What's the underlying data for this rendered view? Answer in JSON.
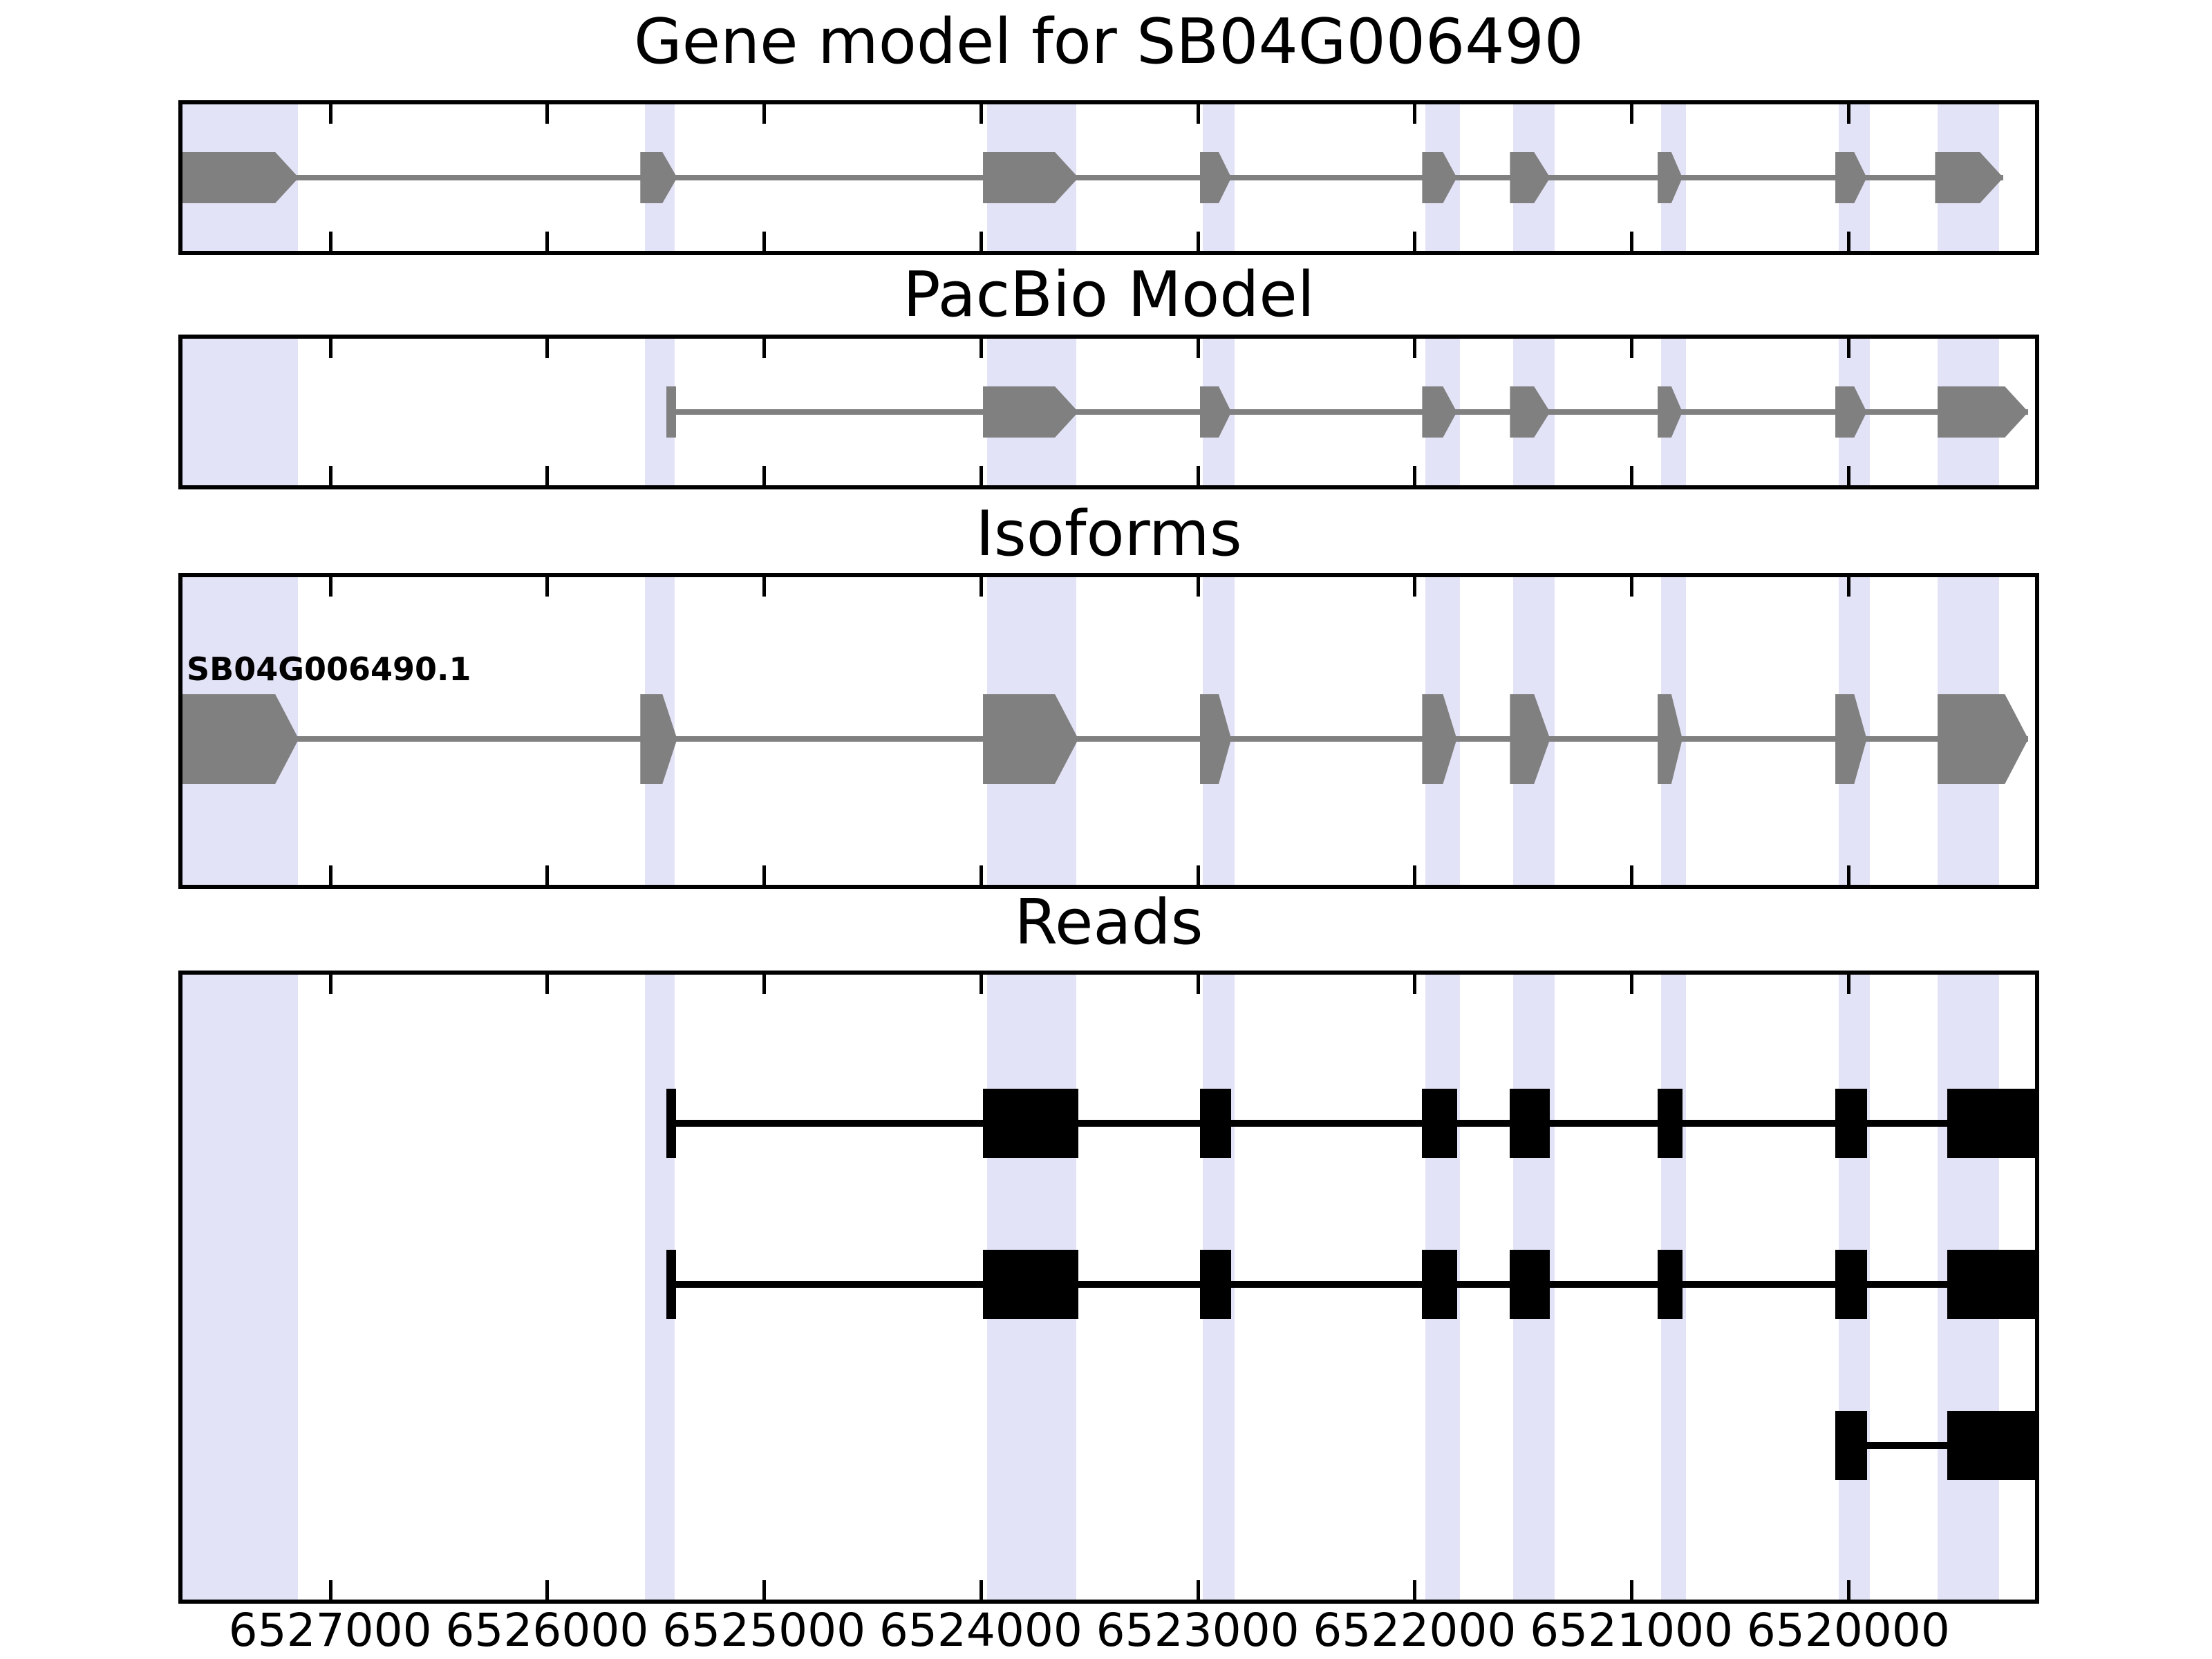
{
  "figure": {
    "background": "#ffffff",
    "panels": [
      {
        "id": "gene_model",
        "title": "Gene model for SB04G006490"
      },
      {
        "id": "pacbio",
        "title": "PacBio Model"
      },
      {
        "id": "isoforms",
        "title": "Isoforms"
      },
      {
        "id": "reads",
        "title": "Reads"
      }
    ]
  },
  "colors": {
    "exon_gray": "#808080",
    "intron_gray": "#808080",
    "read_black": "#000000",
    "highlight_band": "#e3e3f7",
    "panel_border": "#000000",
    "text": "#000000"
  },
  "chart_data": {
    "type": "genomic-feature-tracks",
    "title": "Gene model for SB04G006490",
    "orientation": "genomic coordinates decrease left-to-right (minus-strand view, arrows point right)",
    "grid": false,
    "axis": {
      "left_bp": 6527700,
      "right_bp": 6519120,
      "tick_values": [
        6527000,
        6526000,
        6525000,
        6524000,
        6523000,
        6522000,
        6521000,
        6520000
      ],
      "tick_labels": [
        "6527000",
        "6526000",
        "6525000",
        "6524000",
        "6523000",
        "6522000",
        "6521000",
        "6520000"
      ]
    },
    "highlight_bands_bp": [
      [
        6527680,
        6527150
      ],
      [
        6525550,
        6525410
      ],
      [
        6523970,
        6523560
      ],
      [
        6522975,
        6522830
      ],
      [
        6521950,
        6521790
      ],
      [
        6521545,
        6521355
      ],
      [
        6520865,
        6520750
      ],
      [
        6520045,
        6519900
      ],
      [
        6519590,
        6519305
      ]
    ],
    "tracks": [
      {
        "name": "Gene model for SB04G006490",
        "style": "gene-arrow-gray",
        "features": [
          {
            "start": 6527685,
            "end": 6527145,
            "shape": "arrow"
          },
          {
            "start": 6525570,
            "end": 6525400,
            "shape": "arrow"
          },
          {
            "start": 6523990,
            "end": 6523550,
            "shape": "arrow"
          },
          {
            "start": 6522990,
            "end": 6522845,
            "shape": "arrow"
          },
          {
            "start": 6521965,
            "end": 6521805,
            "shape": "arrow"
          },
          {
            "start": 6521560,
            "end": 6521375,
            "shape": "arrow"
          },
          {
            "start": 6520880,
            "end": 6520765,
            "shape": "arrow"
          },
          {
            "start": 6520060,
            "end": 6519915,
            "shape": "arrow"
          },
          {
            "start": 6519600,
            "end": 6519285,
            "shape": "arrow"
          }
        ]
      },
      {
        "name": "PacBio Model",
        "style": "gene-arrow-gray",
        "features": [
          {
            "start": 6525450,
            "end": 6525405,
            "shape": "bar"
          },
          {
            "start": 6523990,
            "end": 6523550,
            "shape": "arrow"
          },
          {
            "start": 6522990,
            "end": 6522845,
            "shape": "arrow"
          },
          {
            "start": 6521965,
            "end": 6521805,
            "shape": "arrow"
          },
          {
            "start": 6521560,
            "end": 6521375,
            "shape": "arrow"
          },
          {
            "start": 6520880,
            "end": 6520765,
            "shape": "arrow"
          },
          {
            "start": 6520060,
            "end": 6519915,
            "shape": "arrow"
          },
          {
            "start": 6519590,
            "end": 6519170,
            "shape": "arrow"
          }
        ]
      },
      {
        "name": "Isoforms",
        "isoform_label": "SB04G006490.1",
        "style": "gene-arrow-gray",
        "features": [
          {
            "start": 6527685,
            "end": 6527145,
            "shape": "arrow"
          },
          {
            "start": 6525570,
            "end": 6525400,
            "shape": "arrow"
          },
          {
            "start": 6523990,
            "end": 6523550,
            "shape": "arrow"
          },
          {
            "start": 6522990,
            "end": 6522845,
            "shape": "arrow"
          },
          {
            "start": 6521965,
            "end": 6521805,
            "shape": "arrow"
          },
          {
            "start": 6521560,
            "end": 6521375,
            "shape": "arrow"
          },
          {
            "start": 6520880,
            "end": 6520765,
            "shape": "arrow"
          },
          {
            "start": 6520060,
            "end": 6519915,
            "shape": "arrow"
          },
          {
            "start": 6519590,
            "end": 6519170,
            "shape": "arrow"
          }
        ]
      },
      {
        "name": "Reads",
        "style": "read-black",
        "reads": [
          {
            "features": [
              {
                "start": 6525450,
                "end": 6525405,
                "shape": "bar"
              },
              {
                "start": 6523990,
                "end": 6523550,
                "shape": "rect"
              },
              {
                "start": 6522990,
                "end": 6522845,
                "shape": "rect"
              },
              {
                "start": 6521965,
                "end": 6521805,
                "shape": "rect"
              },
              {
                "start": 6521560,
                "end": 6521375,
                "shape": "rect"
              },
              {
                "start": 6520880,
                "end": 6520765,
                "shape": "rect"
              },
              {
                "start": 6520060,
                "end": 6519915,
                "shape": "rect"
              },
              {
                "start": 6519545,
                "end": 6519125,
                "shape": "rect"
              }
            ]
          },
          {
            "features": [
              {
                "start": 6525450,
                "end": 6525405,
                "shape": "bar"
              },
              {
                "start": 6523990,
                "end": 6523550,
                "shape": "rect"
              },
              {
                "start": 6522990,
                "end": 6522845,
                "shape": "rect"
              },
              {
                "start": 6521965,
                "end": 6521805,
                "shape": "rect"
              },
              {
                "start": 6521560,
                "end": 6521375,
                "shape": "rect"
              },
              {
                "start": 6520880,
                "end": 6520765,
                "shape": "rect"
              },
              {
                "start": 6520060,
                "end": 6519915,
                "shape": "rect"
              },
              {
                "start": 6519545,
                "end": 6519125,
                "shape": "rect"
              }
            ]
          },
          {
            "features": [
              {
                "start": 6520060,
                "end": 6519915,
                "shape": "rect"
              },
              {
                "start": 6519545,
                "end": 6519125,
                "shape": "rect"
              }
            ]
          }
        ]
      }
    ]
  }
}
